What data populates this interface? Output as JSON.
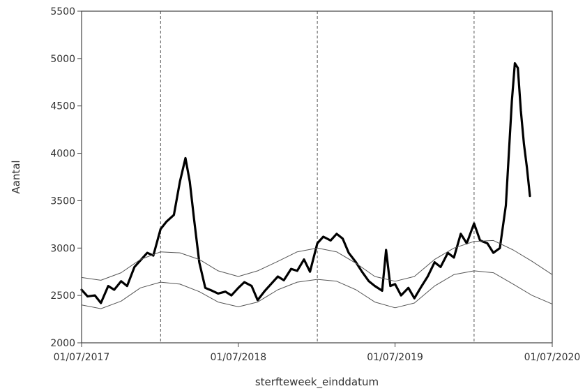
{
  "chart_data": {
    "type": "line",
    "xlabel": "sterfteweek_einddatum",
    "ylabel": "Aantal",
    "ylim": [
      2000,
      5500
    ],
    "yticks": [
      2000,
      2500,
      3000,
      3500,
      4000,
      4500,
      5000,
      5500
    ],
    "xlim": [
      "2017-07-01",
      "2020-07-01"
    ],
    "xticks": [
      {
        "date": "2017-07-01",
        "label": "01/07/2017"
      },
      {
        "date": "2018-07-01",
        "label": "01/07/2018"
      },
      {
        "date": "2019-07-01",
        "label": "01/07/2019"
      },
      {
        "date": "2020-07-01",
        "label": "01/07/2020"
      }
    ],
    "reference_lines_x": [
      "2018-01-01",
      "2019-01-01",
      "2020-01-01"
    ],
    "series": [
      {
        "role": "observed",
        "color": "#000000",
        "points": [
          [
            "2017-07-01",
            2560
          ],
          [
            "2017-07-15",
            2490
          ],
          [
            "2017-08-01",
            2500
          ],
          [
            "2017-08-15",
            2420
          ],
          [
            "2017-09-01",
            2600
          ],
          [
            "2017-09-15",
            2560
          ],
          [
            "2017-10-01",
            2650
          ],
          [
            "2017-10-15",
            2600
          ],
          [
            "2017-11-01",
            2800
          ],
          [
            "2017-11-15",
            2870
          ],
          [
            "2017-12-01",
            2950
          ],
          [
            "2017-12-15",
            2920
          ],
          [
            "2018-01-01",
            3200
          ],
          [
            "2018-01-15",
            3280
          ],
          [
            "2018-02-01",
            3350
          ],
          [
            "2018-02-15",
            3700
          ],
          [
            "2018-02-28",
            3950
          ],
          [
            "2018-03-10",
            3700
          ],
          [
            "2018-03-20",
            3300
          ],
          [
            "2018-04-01",
            2850
          ],
          [
            "2018-04-15",
            2580
          ],
          [
            "2018-05-01",
            2550
          ],
          [
            "2018-05-15",
            2520
          ],
          [
            "2018-06-01",
            2540
          ],
          [
            "2018-06-15",
            2500
          ],
          [
            "2018-07-01",
            2580
          ],
          [
            "2018-07-15",
            2640
          ],
          [
            "2018-08-01",
            2600
          ],
          [
            "2018-08-15",
            2450
          ],
          [
            "2018-09-01",
            2550
          ],
          [
            "2018-09-15",
            2620
          ],
          [
            "2018-10-01",
            2700
          ],
          [
            "2018-10-15",
            2660
          ],
          [
            "2018-11-01",
            2780
          ],
          [
            "2018-11-15",
            2760
          ],
          [
            "2018-12-01",
            2880
          ],
          [
            "2018-12-15",
            2750
          ],
          [
            "2019-01-01",
            3050
          ],
          [
            "2019-01-15",
            3120
          ],
          [
            "2019-02-01",
            3080
          ],
          [
            "2019-02-15",
            3150
          ],
          [
            "2019-03-01",
            3100
          ],
          [
            "2019-03-15",
            2950
          ],
          [
            "2019-04-01",
            2850
          ],
          [
            "2019-04-15",
            2750
          ],
          [
            "2019-05-01",
            2650
          ],
          [
            "2019-05-15",
            2600
          ],
          [
            "2019-06-01",
            2550
          ],
          [
            "2019-06-10",
            2980
          ],
          [
            "2019-06-20",
            2600
          ],
          [
            "2019-07-01",
            2620
          ],
          [
            "2019-07-15",
            2500
          ],
          [
            "2019-08-01",
            2580
          ],
          [
            "2019-08-15",
            2470
          ],
          [
            "2019-09-01",
            2600
          ],
          [
            "2019-09-15",
            2700
          ],
          [
            "2019-10-01",
            2850
          ],
          [
            "2019-10-15",
            2800
          ],
          [
            "2019-11-01",
            2950
          ],
          [
            "2019-11-15",
            2900
          ],
          [
            "2019-12-01",
            3150
          ],
          [
            "2019-12-15",
            3050
          ],
          [
            "2020-01-01",
            3260
          ],
          [
            "2020-01-15",
            3080
          ],
          [
            "2020-02-01",
            3050
          ],
          [
            "2020-02-15",
            2950
          ],
          [
            "2020-03-01",
            3000
          ],
          [
            "2020-03-15",
            3450
          ],
          [
            "2020-03-29",
            4550
          ],
          [
            "2020-04-05",
            4950
          ],
          [
            "2020-04-12",
            4900
          ],
          [
            "2020-04-19",
            4450
          ],
          [
            "2020-04-26",
            4100
          ],
          [
            "2020-05-03",
            3850
          ],
          [
            "2020-05-10",
            3550
          ]
        ]
      },
      {
        "role": "upper-bound",
        "color": "#555555",
        "points": [
          [
            "2017-07-01",
            2690
          ],
          [
            "2017-08-15",
            2660
          ],
          [
            "2017-10-01",
            2740
          ],
          [
            "2017-11-15",
            2880
          ],
          [
            "2018-01-01",
            2960
          ],
          [
            "2018-02-15",
            2950
          ],
          [
            "2018-04-01",
            2880
          ],
          [
            "2018-05-15",
            2760
          ],
          [
            "2018-07-01",
            2700
          ],
          [
            "2018-08-15",
            2760
          ],
          [
            "2018-10-01",
            2860
          ],
          [
            "2018-11-15",
            2960
          ],
          [
            "2019-01-01",
            3000
          ],
          [
            "2019-02-15",
            2960
          ],
          [
            "2019-04-01",
            2840
          ],
          [
            "2019-05-15",
            2700
          ],
          [
            "2019-07-01",
            2650
          ],
          [
            "2019-08-15",
            2700
          ],
          [
            "2019-10-01",
            2880
          ],
          [
            "2019-11-15",
            3000
          ],
          [
            "2020-01-01",
            3070
          ],
          [
            "2020-02-15",
            3080
          ],
          [
            "2020-04-01",
            2980
          ],
          [
            "2020-05-15",
            2860
          ],
          [
            "2020-07-01",
            2720
          ]
        ]
      },
      {
        "role": "lower-bound",
        "color": "#555555",
        "points": [
          [
            "2017-07-01",
            2400
          ],
          [
            "2017-08-15",
            2360
          ],
          [
            "2017-10-01",
            2440
          ],
          [
            "2017-11-15",
            2580
          ],
          [
            "2018-01-01",
            2640
          ],
          [
            "2018-02-15",
            2620
          ],
          [
            "2018-04-01",
            2540
          ],
          [
            "2018-05-15",
            2430
          ],
          [
            "2018-07-01",
            2380
          ],
          [
            "2018-08-15",
            2430
          ],
          [
            "2018-10-01",
            2560
          ],
          [
            "2018-11-15",
            2640
          ],
          [
            "2019-01-01",
            2670
          ],
          [
            "2019-02-15",
            2650
          ],
          [
            "2019-04-01",
            2560
          ],
          [
            "2019-05-15",
            2430
          ],
          [
            "2019-07-01",
            2370
          ],
          [
            "2019-08-15",
            2420
          ],
          [
            "2019-10-01",
            2600
          ],
          [
            "2019-11-15",
            2720
          ],
          [
            "2020-01-01",
            2760
          ],
          [
            "2020-02-15",
            2740
          ],
          [
            "2020-04-01",
            2620
          ],
          [
            "2020-05-15",
            2500
          ],
          [
            "2020-07-01",
            2410
          ]
        ]
      }
    ]
  }
}
